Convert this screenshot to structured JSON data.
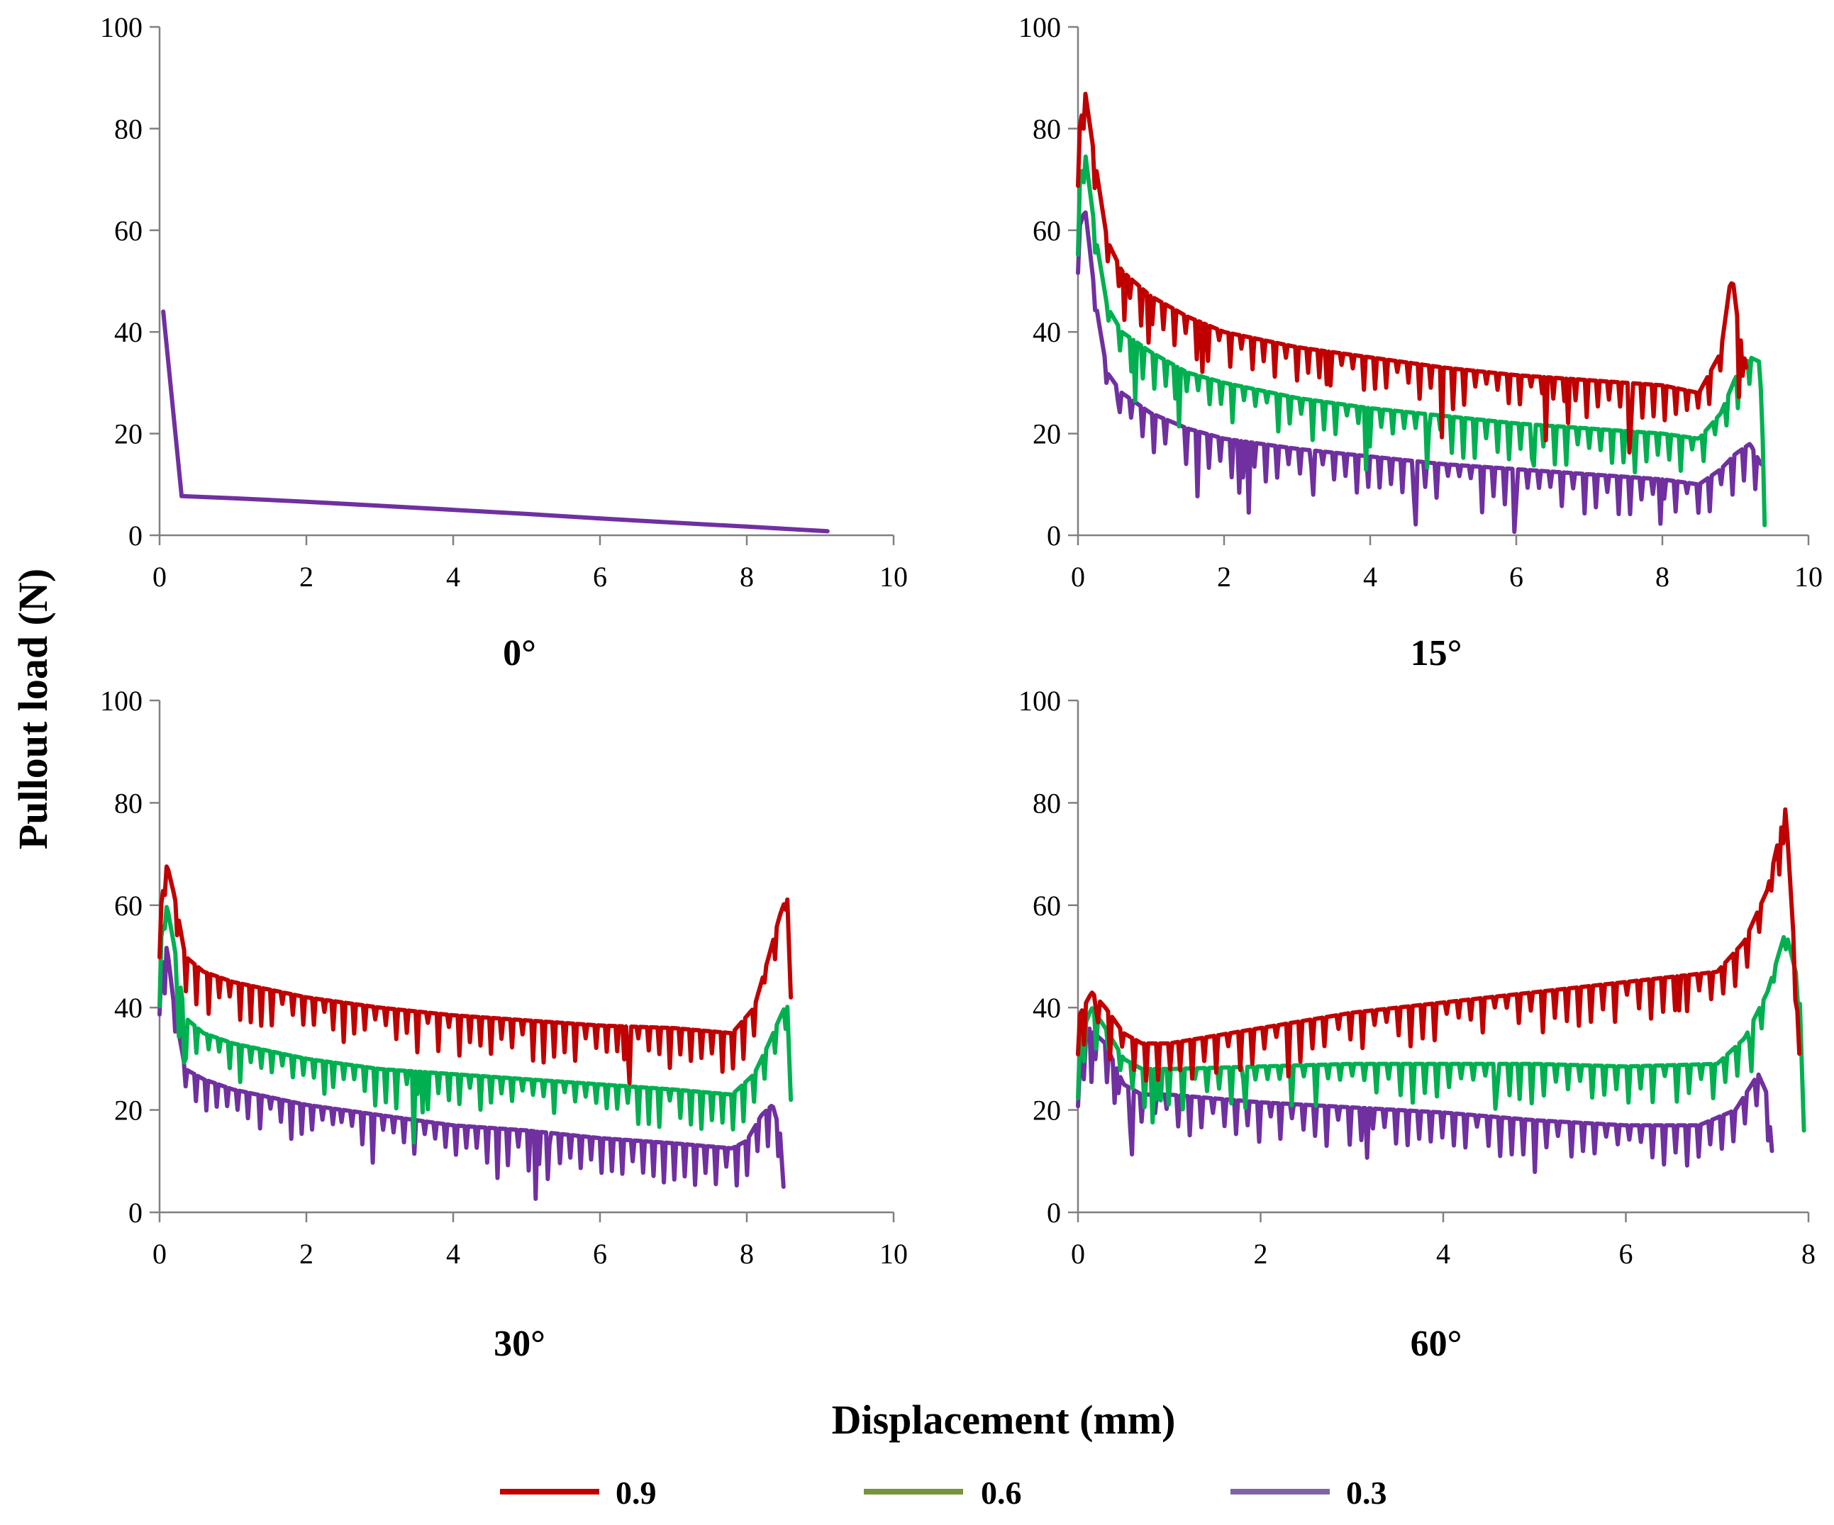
{
  "figure": {
    "ylabel": "Pullout load (N)",
    "xlabel": "Displacement (mm)",
    "legend": {
      "placement": "bottom",
      "items": [
        {
          "label": "0.9",
          "color": "#C00000"
        },
        {
          "label": "0.6",
          "color": "#77933C"
        },
        {
          "label": "0.3",
          "color": "#8064A2"
        }
      ]
    }
  },
  "chart_data": [
    {
      "type": "line",
      "title": "0°",
      "xlim": [
        0,
        10
      ],
      "ylim": [
        0,
        100
      ],
      "xticks": [
        "0",
        "2",
        "4",
        "6",
        "8",
        "10"
      ],
      "yticks": [
        "0",
        "20",
        "40",
        "60",
        "80",
        "100"
      ],
      "series": [
        {
          "color": "#7030A0",
          "x": [
            0.05,
            0.3,
            1.0,
            2.0,
            3.0,
            4.0,
            5.0,
            6.0,
            7.0,
            8.0,
            9.1
          ],
          "y": [
            44,
            7.7,
            7.3,
            6.6,
            5.8,
            5.0,
            4.2,
            3.3,
            2.5,
            1.7,
            0.8
          ]
        }
      ]
    },
    {
      "type": "line",
      "title": "15°",
      "xlim": [
        0,
        10
      ],
      "ylim": [
        0,
        100
      ],
      "xticks": [
        "0",
        "2",
        "4",
        "6",
        "8",
        "10"
      ],
      "yticks": [
        "0",
        "20",
        "40",
        "60",
        "80",
        "100"
      ],
      "series": [
        {
          "color": "#C00000",
          "x": [
            0.0,
            0.1,
            0.25,
            0.4,
            0.6,
            1.0,
            1.5,
            2.0,
            3.0,
            4.0,
            5.0,
            6.0,
            7.0,
            8.0,
            8.5,
            8.8,
            8.95,
            9.05,
            9.15
          ],
          "y": [
            78,
            87,
            72,
            58,
            52,
            47,
            43,
            40,
            37,
            35,
            33,
            31.5,
            30.5,
            29.5,
            28,
            36,
            52,
            40,
            33
          ]
        },
        {
          "color": "#00B050",
          "x": [
            0.0,
            0.1,
            0.25,
            0.4,
            0.6,
            1.0,
            1.5,
            2.0,
            3.0,
            4.0,
            5.0,
            6.0,
            7.0,
            8.0,
            8.5,
            8.8,
            9.0,
            9.2,
            9.35,
            9.4
          ],
          "y": [
            68,
            75,
            58,
            45,
            40,
            36,
            32,
            30,
            27,
            25,
            23.5,
            22,
            21,
            20,
            19,
            24,
            31,
            35,
            34,
            2
          ]
        },
        {
          "color": "#7030A0",
          "x": [
            0.0,
            0.1,
            0.25,
            0.4,
            0.6,
            1.0,
            1.5,
            2.0,
            3.0,
            4.0,
            5.0,
            6.0,
            7.0,
            8.0,
            8.5,
            8.8,
            9.0,
            9.2,
            9.35
          ],
          "y": [
            60,
            64,
            45,
            32,
            28,
            24,
            21,
            19,
            17,
            15.5,
            14,
            13,
            12,
            11,
            10,
            13,
            16,
            18,
            14
          ]
        }
      ]
    },
    {
      "type": "line",
      "title": "30°",
      "xlim": [
        0,
        10
      ],
      "ylim": [
        0,
        100
      ],
      "xticks": [
        "0",
        "2",
        "4",
        "6",
        "8",
        "10"
      ],
      "yticks": [
        "0",
        "20",
        "40",
        "60",
        "80",
        "100"
      ],
      "series": [
        {
          "color": "#C00000",
          "x": [
            0.0,
            0.1,
            0.2,
            0.35,
            0.6,
            1.0,
            2.0,
            3.0,
            4.0,
            5.0,
            6.0,
            7.0,
            7.8,
            8.1,
            8.3,
            8.45,
            8.55,
            8.6
          ],
          "y": [
            58,
            68,
            62,
            50,
            47,
            45,
            42,
            40,
            38.5,
            37.5,
            36.5,
            36,
            35,
            40,
            50,
            58,
            62,
            42
          ]
        },
        {
          "color": "#00B050",
          "x": [
            0.0,
            0.1,
            0.2,
            0.35,
            0.6,
            1.0,
            2.0,
            3.0,
            4.0,
            5.0,
            6.0,
            7.0,
            7.8,
            8.1,
            8.3,
            8.45,
            8.55,
            8.6
          ],
          "y": [
            52,
            60,
            52,
            38,
            35,
            33,
            30,
            28,
            27,
            26,
            25,
            24,
            23,
            27,
            33,
            38,
            41,
            22
          ]
        },
        {
          "color": "#7030A0",
          "x": [
            0.0,
            0.1,
            0.2,
            0.35,
            0.6,
            1.0,
            2.0,
            3.0,
            4.0,
            5.0,
            6.0,
            7.0,
            7.8,
            8.0,
            8.2,
            8.35,
            8.45,
            8.5
          ],
          "y": [
            46,
            52,
            40,
            28,
            26,
            24,
            21,
            19,
            17,
            16,
            14.5,
            13.5,
            12.5,
            14,
            19,
            21,
            16,
            5
          ]
        }
      ]
    },
    {
      "type": "line",
      "title": "60°",
      "xlim": [
        0,
        8
      ],
      "ylim": [
        0,
        100
      ],
      "xticks": [
        "0",
        "2",
        "4",
        "6",
        "8"
      ],
      "yticks": [
        "0",
        "20",
        "40",
        "60",
        "80",
        "100"
      ],
      "series": [
        {
          "color": "#C00000",
          "x": [
            0.0,
            0.15,
            0.3,
            0.5,
            0.7,
            1.0,
            2.0,
            3.0,
            4.0,
            5.0,
            6.0,
            7.0,
            7.3,
            7.55,
            7.75,
            7.85,
            7.9
          ],
          "y": [
            38,
            43,
            40,
            35,
            33,
            33,
            36,
            39,
            41,
            43,
            45,
            47,
            53,
            63,
            79,
            50,
            31
          ]
        },
        {
          "color": "#00B050",
          "x": [
            0.0,
            0.15,
            0.3,
            0.5,
            0.7,
            1.0,
            2.0,
            3.0,
            4.0,
            5.0,
            6.0,
            7.0,
            7.3,
            7.55,
            7.75,
            7.9,
            7.95
          ],
          "y": [
            33,
            40,
            36,
            30,
            28,
            28,
            28.5,
            29,
            29,
            29,
            28.5,
            29,
            34,
            43,
            55,
            44,
            16
          ]
        },
        {
          "color": "#7030A0",
          "x": [
            0.0,
            0.12,
            0.3,
            0.5,
            0.7,
            1.0,
            2.0,
            3.0,
            4.0,
            5.0,
            6.0,
            6.8,
            7.2,
            7.45,
            7.55,
            7.6
          ],
          "y": [
            27,
            36,
            33,
            25,
            23,
            23,
            21.5,
            20.5,
            19.5,
            18,
            17,
            17,
            20,
            27,
            23,
            12
          ]
        }
      ]
    }
  ]
}
